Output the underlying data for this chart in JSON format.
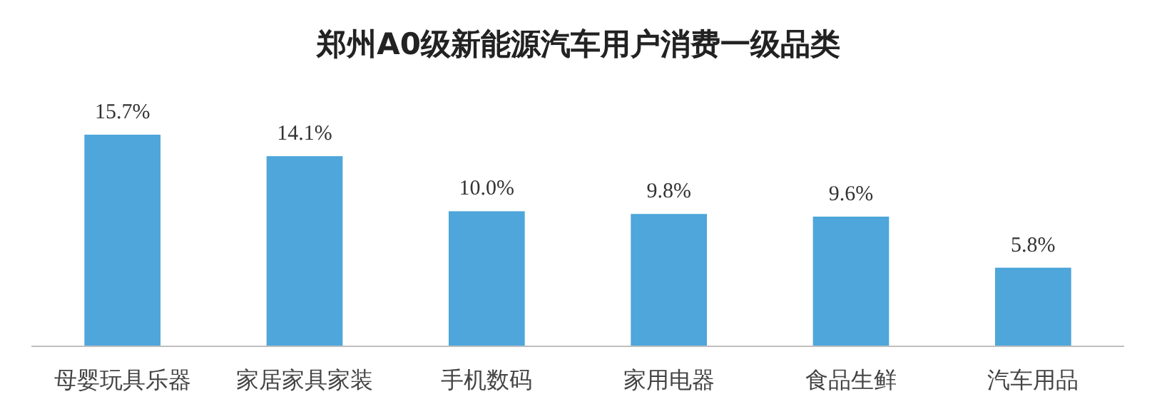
{
  "chart_data": {
    "type": "bar",
    "title": "郑州A0级新能源汽车用户消费一级品类",
    "categories": [
      "母婴玩具乐器",
      "家居家具家装",
      "手机数码",
      "家用电器",
      "食品生鲜",
      "汽车用品"
    ],
    "values": [
      15.7,
      14.1,
      10.0,
      9.8,
      9.6,
      5.8
    ],
    "value_labels": [
      "15.7%",
      "14.1%",
      "10.0%",
      "9.8%",
      "9.6%",
      "5.8%"
    ],
    "color": "#4ea6da"
  }
}
